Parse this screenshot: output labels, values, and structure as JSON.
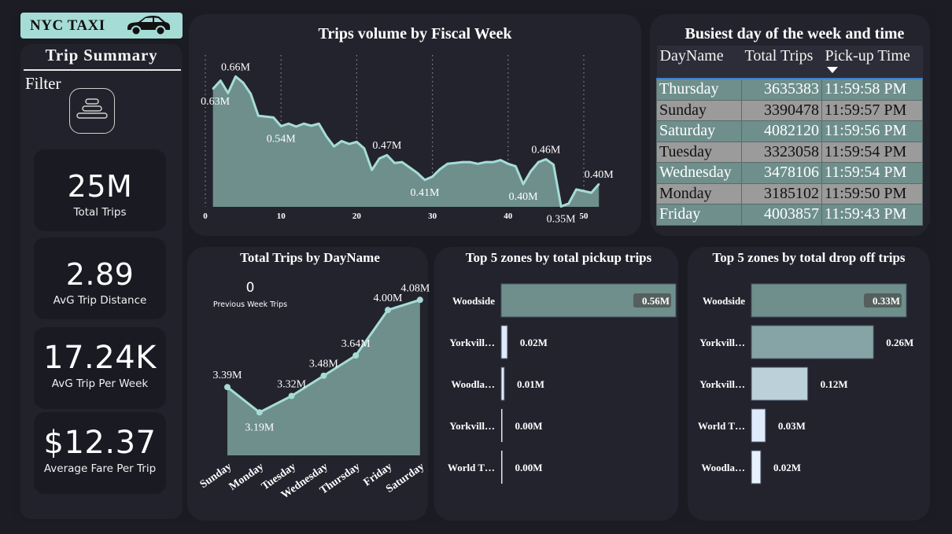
{
  "brand": {
    "title": "NYC TAXI",
    "icon": "car-icon"
  },
  "sidebar": {
    "title": "Trip Summary",
    "filter_label": "Filter",
    "filter_icon": "filter-stack-icon",
    "kpis": [
      {
        "value": "25M",
        "label": "Total Trips"
      },
      {
        "value": "2.89",
        "label": "AvG Trip Distance"
      },
      {
        "value": "17.24K",
        "label": "AvG Trip Per Week"
      },
      {
        "value": "$12.37",
        "label": "Average Fare Per Trip"
      }
    ]
  },
  "busiest": {
    "title": "Busiest day of the week and time",
    "columns": [
      "DayName",
      "Total Trips",
      "Pick-up Time"
    ],
    "sorted_column": "Pick-up Time",
    "rows": [
      {
        "day": "Thursday",
        "trips": "3635383",
        "time": "11:59:58 PM"
      },
      {
        "day": "Sunday",
        "trips": "3390478",
        "time": "11:59:57 PM"
      },
      {
        "day": "Saturday",
        "trips": "4082120",
        "time": "11:59:56 PM"
      },
      {
        "day": "Tuesday",
        "trips": "3323058",
        "time": "11:59:54 PM"
      },
      {
        "day": "Wednesday",
        "trips": "3478106",
        "time": "11:59:54 PM"
      },
      {
        "day": "Monday",
        "trips": "3185102",
        "time": "11:59:50 PM"
      },
      {
        "day": "Friday",
        "trips": "4003857",
        "time": "11:59:43 PM"
      }
    ]
  },
  "prev_week": {
    "value": "0",
    "label": "Previous Week Trips"
  },
  "colors": {
    "area": "#6e8f8c",
    "line": "#a6dcd6",
    "bg": "#23232e"
  },
  "chart_data": [
    {
      "id": "fiscal-week",
      "type": "area",
      "title": "Trips volume by Fiscal Week",
      "xlabel": "",
      "ylabel": "",
      "unit": "M",
      "xlim": [
        0,
        55
      ],
      "ylim": [
        0.345,
        0.67
      ],
      "xticks": [
        0,
        10,
        20,
        30,
        40,
        50
      ],
      "grid": "vertical-dotted",
      "x": [
        1,
        2,
        3,
        4,
        5,
        6,
        7,
        8,
        9,
        10,
        11,
        12,
        13,
        14,
        15,
        16,
        17,
        18,
        19,
        20,
        21,
        22,
        23,
        24,
        25,
        26,
        27,
        28,
        29,
        30,
        31,
        32,
        33,
        34,
        35,
        36,
        37,
        38,
        39,
        40,
        41,
        42,
        43,
        44,
        45,
        46,
        47,
        48,
        49,
        50,
        51,
        52
      ],
      "values": [
        0.63,
        0.65,
        0.62,
        0.66,
        0.645,
        0.618,
        0.565,
        0.563,
        0.561,
        0.54,
        0.546,
        0.539,
        0.546,
        0.541,
        0.546,
        0.515,
        0.491,
        0.504,
        0.497,
        0.502,
        0.486,
        0.434,
        0.462,
        0.47,
        0.451,
        0.453,
        0.44,
        0.427,
        0.41,
        0.418,
        0.436,
        0.449,
        0.451,
        0.453,
        0.453,
        0.449,
        0.453,
        0.453,
        0.458,
        0.449,
        0.443,
        0.4,
        0.431,
        0.453,
        0.46,
        0.447,
        0.346,
        0.353,
        0.387,
        0.383,
        0.379,
        0.4
      ],
      "data_labels": [
        {
          "x": 1,
          "text": "0.63M",
          "pos": "below"
        },
        {
          "x": 4,
          "text": "0.66M",
          "pos": "above"
        },
        {
          "x": 10,
          "text": "0.54M",
          "pos": "below"
        },
        {
          "x": 24,
          "text": "0.47M",
          "pos": "above"
        },
        {
          "x": 29,
          "text": "0.41M",
          "pos": "below"
        },
        {
          "x": 42,
          "text": "0.40M",
          "pos": "below"
        },
        {
          "x": 45,
          "text": "0.46M",
          "pos": "above"
        },
        {
          "x": 47,
          "text": "0.35M",
          "pos": "below"
        },
        {
          "x": 52,
          "text": "0.40M",
          "pos": "above"
        }
      ]
    },
    {
      "id": "dayname",
      "type": "area",
      "title": "Total Trips by DayName",
      "unit": "M",
      "categories": [
        "Sunday",
        "Monday",
        "Tuesday",
        "Wednesday",
        "Thursday",
        "Friday",
        "Saturday"
      ],
      "values": [
        3.39,
        3.19,
        3.32,
        3.48,
        3.64,
        4.0,
        4.08
      ],
      "labels": [
        "3.39M",
        "3.19M",
        "3.32M",
        "3.48M",
        "3.64M",
        "4.00M",
        "4.08M"
      ],
      "ylim": [
        2.85,
        4.2
      ]
    },
    {
      "id": "pickup-zones",
      "type": "bar",
      "orientation": "horizontal",
      "title": "Top 5 zones by total pickup trips",
      "categories": [
        "Woodside",
        "Yorkvill…",
        "Woodla…",
        "Yorkvill…",
        "World T…"
      ],
      "values": [
        0.56,
        0.02,
        0.01,
        0.0,
        0.0
      ],
      "labels": [
        "0.56M",
        "0.02M",
        "0.01M",
        "0.00M",
        "0.00M"
      ],
      "bar_colors": [
        "#6e8f8c",
        "#dfeafb",
        "#dfeafb",
        "#dfeafb",
        "#dfeafb"
      ],
      "xlim": [
        0,
        0.56
      ]
    },
    {
      "id": "dropoff-zones",
      "type": "bar",
      "orientation": "horizontal",
      "title": "Top 5 zones by total drop off trips",
      "categories": [
        "Woodside",
        "Yorkvill…",
        "Yorkvill…",
        "World T…",
        "Woodla…"
      ],
      "values": [
        0.33,
        0.26,
        0.12,
        0.03,
        0.02
      ],
      "labels": [
        "0.33M",
        "0.26M",
        "0.12M",
        "0.03M",
        "0.02M"
      ],
      "bar_colors": [
        "#6e8f8c",
        "#86a3a5",
        "#bcd0da",
        "#dfeafb",
        "#e8f1fd"
      ],
      "xlim": [
        0,
        0.33
      ]
    }
  ]
}
